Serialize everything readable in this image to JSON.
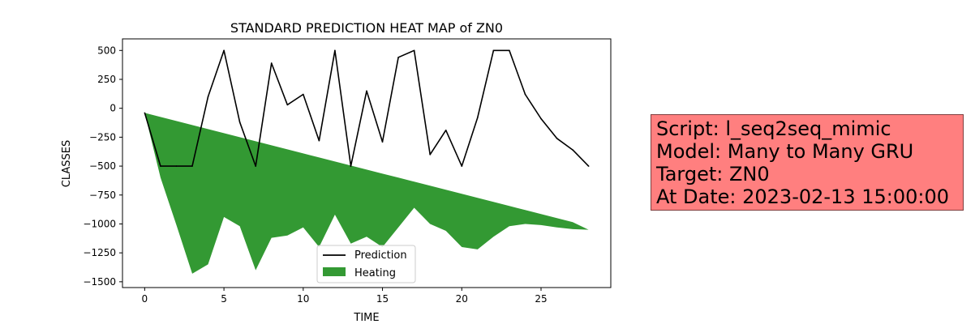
{
  "chart_data": {
    "type": "line",
    "title": "STANDARD PREDICTION HEAT MAP of ZN0",
    "xlabel": "TIME",
    "ylabel": "CLASSES",
    "xlim": [
      -1.4,
      29.4
    ],
    "ylim": [
      -1550,
      600
    ],
    "xticks": [
      0,
      5,
      10,
      15,
      20,
      25
    ],
    "yticks": [
      500,
      250,
      0,
      -250,
      -500,
      -750,
      -1000,
      -1250,
      -1500
    ],
    "ytick_labels": [
      "500",
      "250",
      "0",
      "−250",
      "−500",
      "−750",
      "−1000",
      "−1250",
      "−1500"
    ],
    "grid": false,
    "legend_placement": "lower-center",
    "x": [
      0,
      1,
      2,
      3,
      4,
      5,
      6,
      7,
      8,
      9,
      10,
      11,
      12,
      13,
      14,
      15,
      16,
      17,
      18,
      19,
      20,
      21,
      22,
      23,
      24,
      25,
      26,
      27,
      28
    ],
    "series": [
      {
        "name": "Prediction",
        "kind": "line",
        "color": "#000000",
        "values": [
          -40,
          -500,
          -500,
          -500,
          100,
          500,
          -120,
          -500,
          390,
          30,
          120,
          -280,
          500,
          -500,
          150,
          -290,
          440,
          500,
          -400,
          -190,
          -500,
          -80,
          500,
          500,
          120,
          -90,
          -260,
          -360,
          -500
        ]
      },
      {
        "name": "Heating",
        "kind": "area",
        "color": "#008000",
        "upper": [
          -40,
          -75,
          -110,
          -145,
          -180,
          -215,
          -250,
          -285,
          -320,
          -355,
          -390,
          -425,
          -460,
          -495,
          -530,
          -565,
          -600,
          -635,
          -670,
          -705,
          -740,
          -775,
          -810,
          -845,
          -880,
          -915,
          -950,
          -985,
          -1050
        ],
        "lower": [
          -40,
          -600,
          -1010,
          -1430,
          -1350,
          -940,
          -1020,
          -1400,
          -1120,
          -1100,
          -1030,
          -1200,
          -920,
          -1170,
          -1110,
          -1200,
          -1030,
          -860,
          -1000,
          -1060,
          -1200,
          -1220,
          -1110,
          -1020,
          -1000,
          -1010,
          -1030,
          -1045,
          -1050
        ]
      }
    ]
  },
  "info_box": {
    "lines": [
      "Script: l_seq2seq_mimic",
      "Model: Many to Many GRU",
      "Target: ZN0",
      "At Date: 2023-02-13 15:00:00"
    ]
  }
}
